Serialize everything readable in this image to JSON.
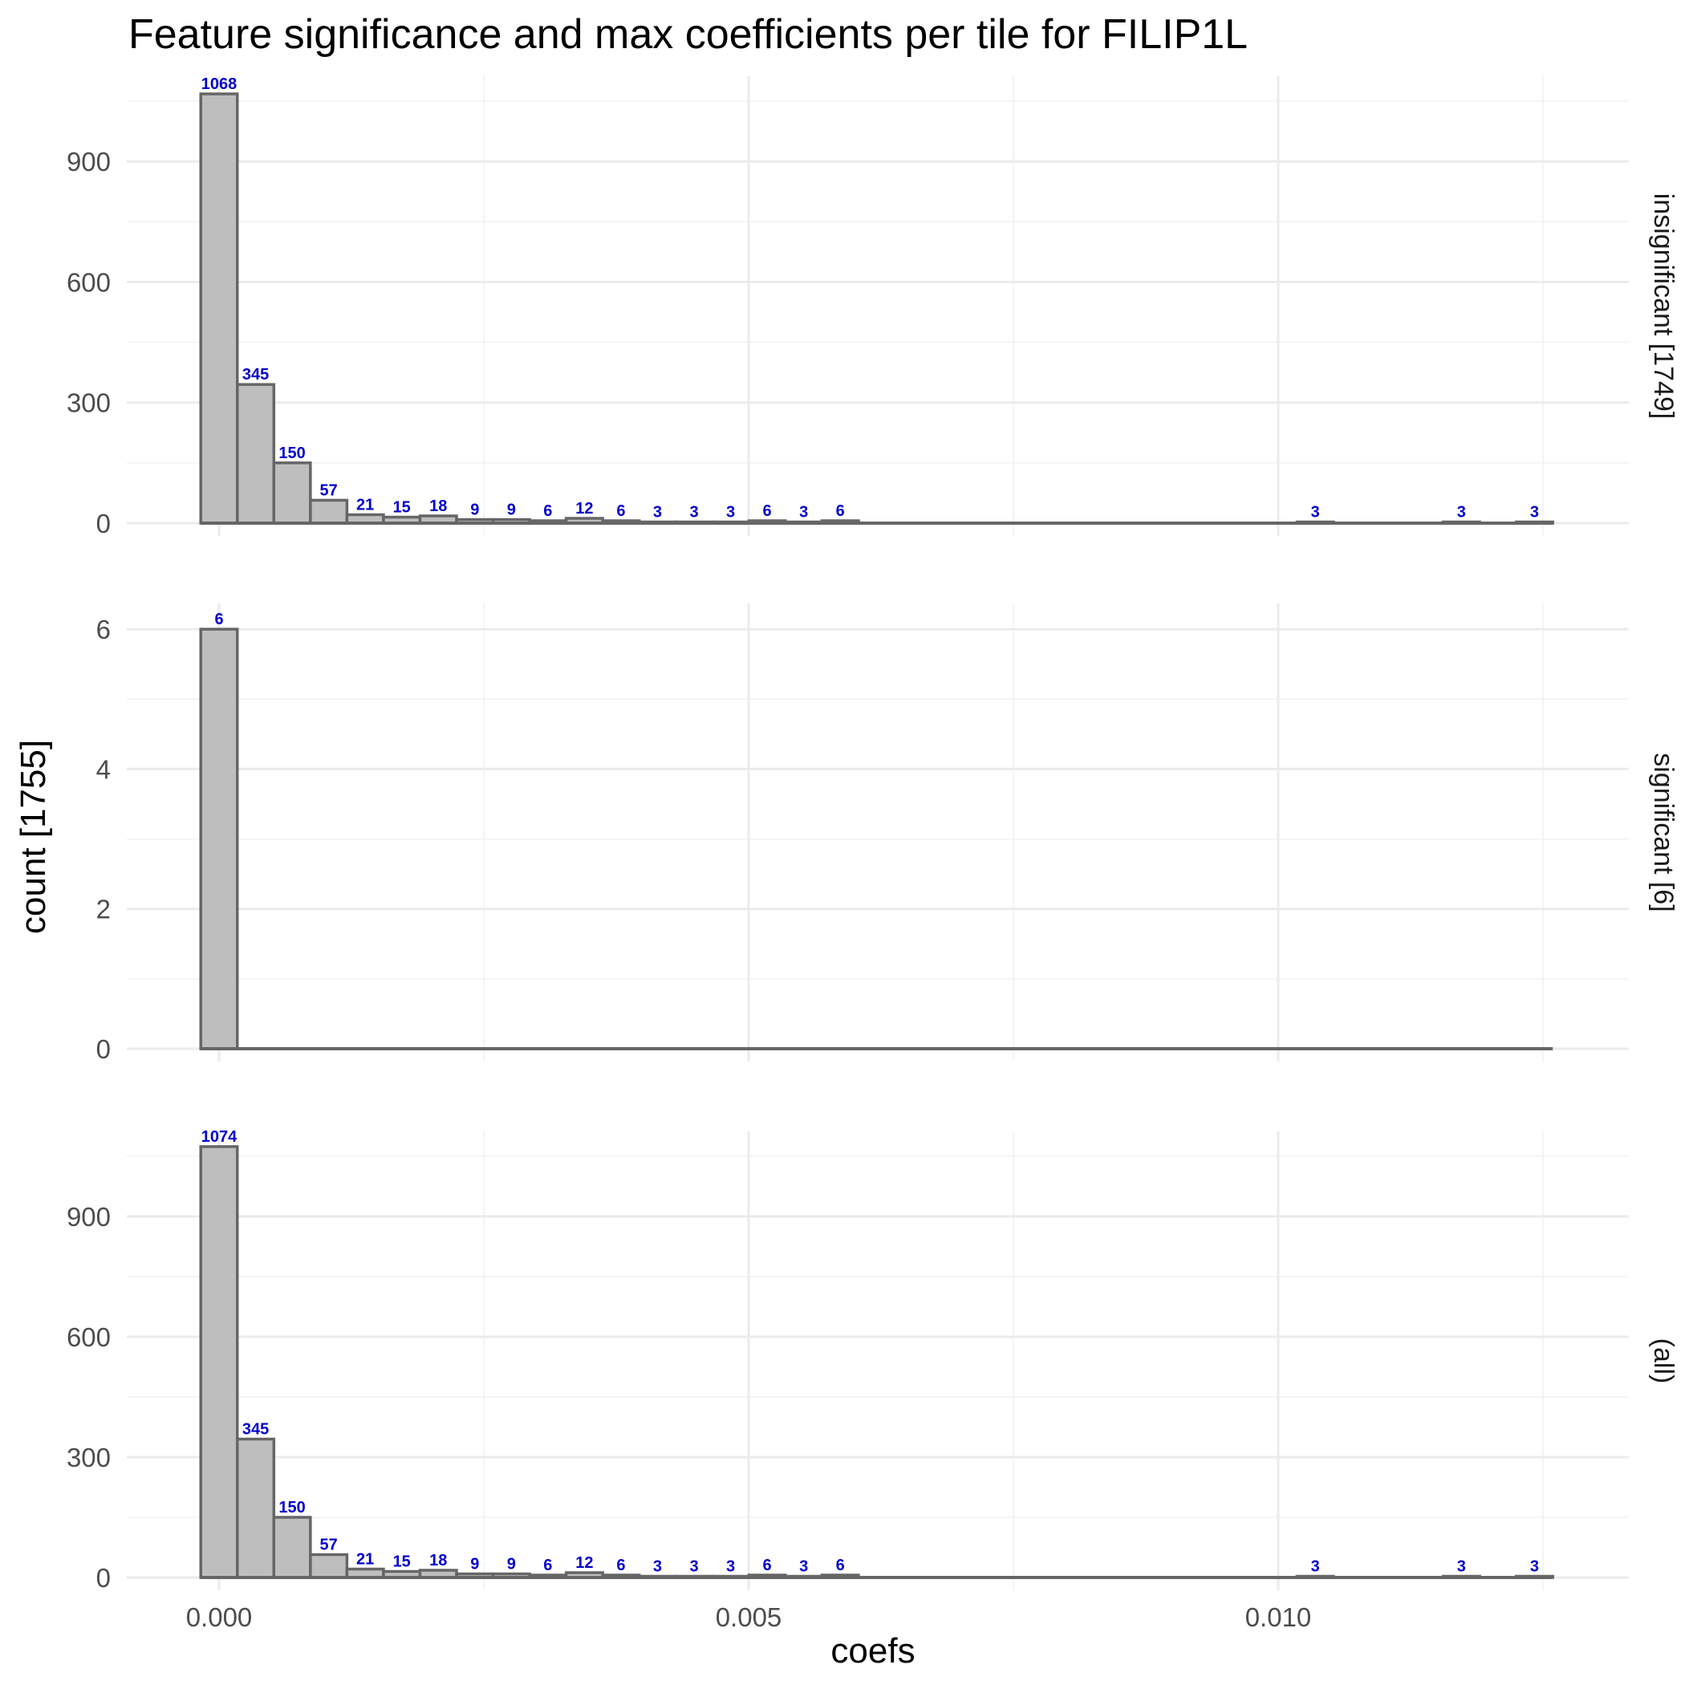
{
  "chart_data": {
    "type": "bar",
    "title": "Feature significance and max coefficients per tile for FILIP1L",
    "xlabel": "coefs",
    "ylabel": "count [1755]",
    "bin_width": 0.000345,
    "x_range": [
      -0.000175,
      0.01256
    ],
    "x_ticks": [
      0.0,
      0.005,
      0.01
    ],
    "x_tick_labels": [
      "0.000",
      "0.005",
      "0.010"
    ],
    "bin_centers": [
      0.0,
      0.000345,
      0.00069,
      0.001035,
      0.00138,
      0.001725,
      0.00207,
      0.002415,
      0.00276,
      0.003105,
      0.00345,
      0.003795,
      0.00414,
      0.004485,
      0.00483,
      0.005175,
      0.00552,
      0.005865,
      0.00621,
      0.006555,
      0.0069,
      0.007245,
      0.00759,
      0.007935,
      0.00828,
      0.008625,
      0.00897,
      0.009315,
      0.00966,
      0.010005,
      0.01035,
      0.010695,
      0.01104,
      0.011385,
      0.01173,
      0.012075,
      0.01242
    ],
    "panels": [
      {
        "strip_label": "insignificant [1749]",
        "ylim": [
          0,
          1100
        ],
        "y_ticks": [
          0,
          300,
          600,
          900
        ],
        "counts": [
          1068,
          345,
          150,
          57,
          21,
          15,
          18,
          9,
          9,
          6,
          12,
          6,
          3,
          3,
          3,
          6,
          3,
          6,
          0,
          0,
          0,
          0,
          0,
          0,
          0,
          0,
          0,
          0,
          0,
          0,
          3,
          0,
          0,
          0,
          3,
          0,
          3
        ]
      },
      {
        "strip_label": "significant [6]",
        "ylim": [
          0,
          6.3
        ],
        "y_ticks": [
          0,
          2,
          4,
          6
        ],
        "counts": [
          6,
          0,
          0,
          0,
          0,
          0,
          0,
          0,
          0,
          0,
          0,
          0,
          0,
          0,
          0,
          0,
          0,
          0,
          0,
          0,
          0,
          0,
          0,
          0,
          0,
          0,
          0,
          0,
          0,
          0,
          0,
          0,
          0,
          0,
          0,
          0,
          0
        ]
      },
      {
        "strip_label": "(all)",
        "ylim": [
          0,
          1100
        ],
        "y_ticks": [
          0,
          300,
          600,
          900
        ],
        "counts": [
          1074,
          345,
          150,
          57,
          21,
          15,
          18,
          9,
          9,
          6,
          12,
          6,
          3,
          3,
          3,
          6,
          3,
          6,
          0,
          0,
          0,
          0,
          0,
          0,
          0,
          0,
          0,
          0,
          0,
          0,
          3,
          0,
          0,
          0,
          3,
          0,
          3
        ]
      }
    ],
    "grid": true,
    "colors": {
      "bar_fill": "#bebebe",
      "bar_outline": "#666666",
      "label": "#0000cc"
    }
  }
}
